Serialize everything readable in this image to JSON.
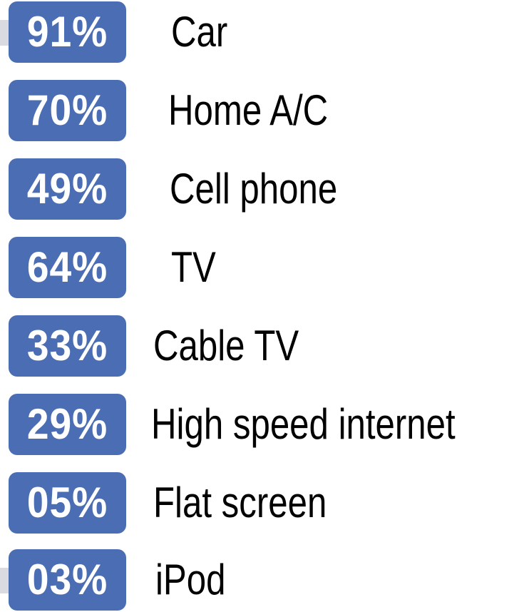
{
  "items": [
    {
      "percent": "91%",
      "label": "Car"
    },
    {
      "percent": "70%",
      "label": "Home A/C"
    },
    {
      "percent": "49%",
      "label": "Cell phone"
    },
    {
      "percent": "64%",
      "label": "TV"
    },
    {
      "percent": "33%",
      "label": "Cable TV"
    },
    {
      "percent": "29%",
      "label": "High speed internet"
    },
    {
      "percent": "05%",
      "label": "Flat screen"
    },
    {
      "percent": "03%",
      "label": "iPod"
    }
  ]
}
